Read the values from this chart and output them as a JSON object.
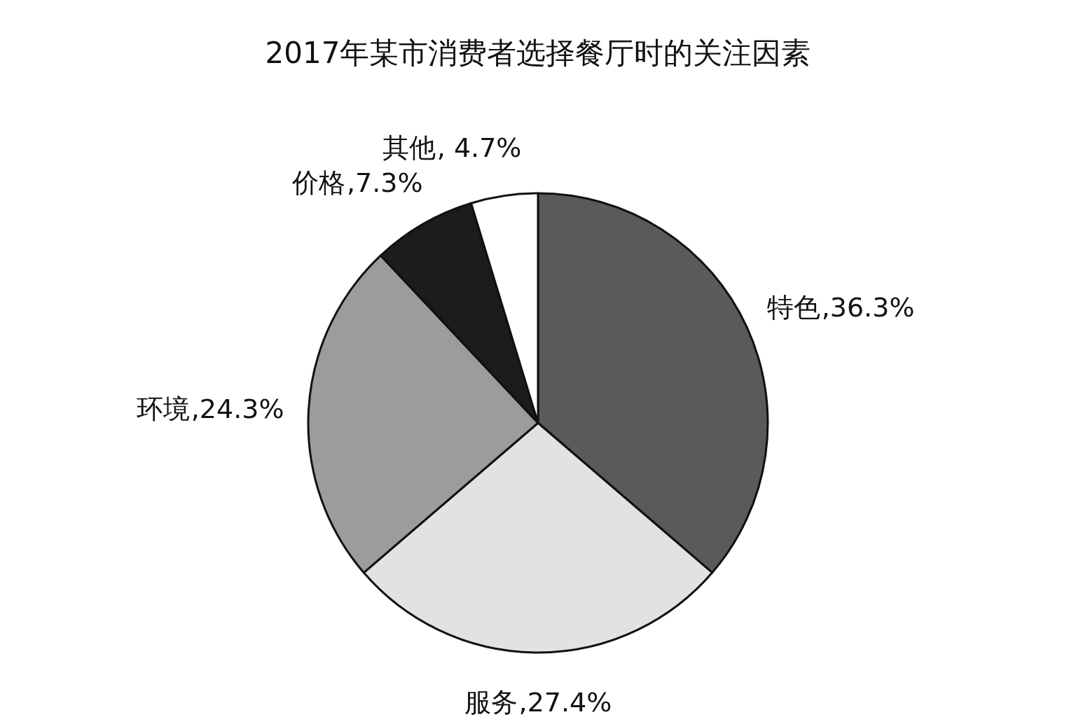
{
  "chart_data": {
    "type": "pie",
    "title": "2017年某市消费者选择餐厅时的关注因素",
    "categories": [
      "特色",
      "服务",
      "环境",
      "价格",
      "其他"
    ],
    "values": [
      36.3,
      27.4,
      24.3,
      7.3,
      4.7
    ],
    "value_labels": [
      ",36.3%",
      ",27.4%",
      ",24.3%",
      ",7.3%",
      ", 4.7%"
    ],
    "colors": [
      "#5a5a5a",
      "#e2e2e2",
      "#9c9c9c",
      "#1c1c1c",
      "#ffffff"
    ],
    "legend": false
  }
}
